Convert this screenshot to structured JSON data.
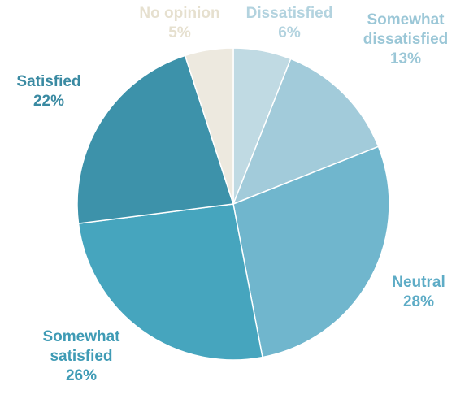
{
  "chart_data": {
    "type": "pie",
    "title": "",
    "slices": [
      {
        "label": "Dissatisfied",
        "value": 6,
        "value_label": "6%",
        "color": "#c0dae3"
      },
      {
        "label": "Somewhat dissatisfied",
        "value": 13,
        "value_label": "13%",
        "color": "#a2cbda"
      },
      {
        "label": "Neutral",
        "value": 28,
        "value_label": "28%",
        "color": "#70b6cd"
      },
      {
        "label": "Somewhat satisfied",
        "value": 26,
        "value_label": "26%",
        "color": "#46a5be"
      },
      {
        "label": "Satisfied",
        "value": 22,
        "value_label": "22%",
        "color": "#3d92aa"
      },
      {
        "label": "No opinion",
        "value": 5,
        "value_label": "5%",
        "color": "#ede9df"
      }
    ],
    "legend": "none",
    "start_angle": "12 o'clock",
    "direction": "clockwise"
  }
}
